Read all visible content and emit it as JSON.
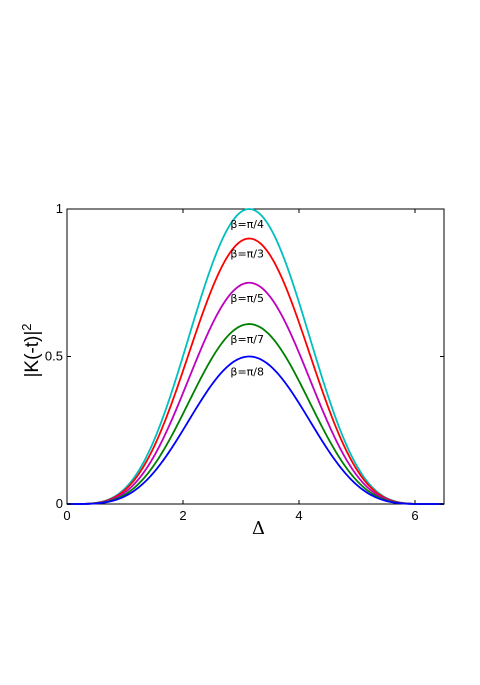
{
  "chart_data": {
    "type": "line",
    "title": "",
    "xlabel": "Δ",
    "ylabel": "|K(-t)|",
    "ylabel_superscript": "2",
    "xlim": [
      0,
      6.5
    ],
    "ylim": [
      0,
      1
    ],
    "xticks": [
      0,
      2,
      4,
      6
    ],
    "yticks": [
      0,
      0.5,
      1
    ],
    "xtick_labels": [
      "0",
      "2",
      "4",
      "6"
    ],
    "ytick_labels": [
      "0",
      "0.5",
      "1"
    ],
    "grid": false,
    "legend": "none",
    "formula": "y = peak * ((1 - cos(x)) / 2)^2",
    "series": [
      {
        "name": "β=π/4",
        "peak": 1.0,
        "color": "#00bfbf"
      },
      {
        "name": "β=π/3",
        "peak": 0.9,
        "color": "#ff0000"
      },
      {
        "name": "β=π/5",
        "peak": 0.75,
        "color": "#bf00bf"
      },
      {
        "name": "β=π/7",
        "peak": 0.61,
        "color": "#008000"
      },
      {
        "name": "β=π/8",
        "peak": 0.5,
        "color": "#0000ff"
      }
    ]
  }
}
